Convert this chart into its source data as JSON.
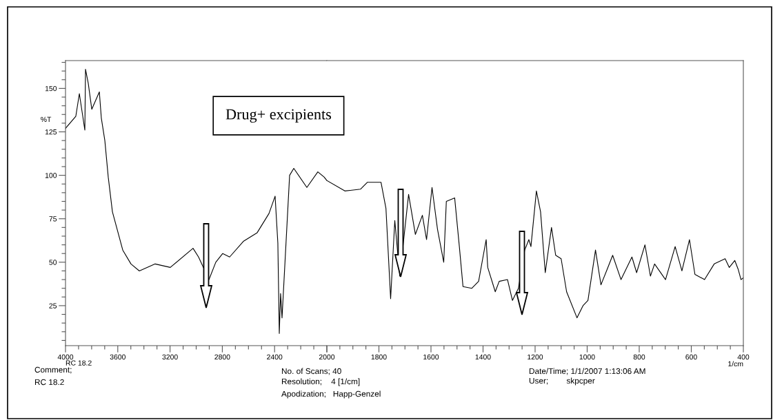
{
  "chart_data": [
    {
      "type": "line",
      "ylabel": "%T",
      "xlim": [
        4000,
        2000
      ],
      "xticks": [
        4000,
        3600,
        3200,
        2800,
        2400,
        {
          "value": 2000,
          "label": null
        }
      ],
      "ylim": [
        2,
        166
      ],
      "yticks": [
        25,
        50,
        75,
        100,
        125,
        150
      ],
      "marker": "none",
      "line_style": "solid",
      "annotations": [
        "RC 18.2",
        "Comment;",
        "RC 18.2",
        "No. of Scans; 40",
        "Resolution;    4 [1/cm]",
        "Apodization;   Happ-Genzel",
        "Date/Time; 1/1/2007 1:13:06 AM",
        "User;        skpcper",
        "Drug+ excipients"
      ],
      "series": [
        {
          "color": "#000000",
          "x": [
            4000,
            3921,
            3894,
            3852,
            3847,
            3826,
            3799,
            3741,
            3726,
            3699,
            3673,
            3641,
            3562,
            3499,
            3435,
            3314,
            3198,
            3024,
            2982,
            2902,
            2850,
            2797,
            2744,
            2639,
            2533,
            2443,
            2396,
            2375,
            2364,
            2354,
            2343,
            2285,
            2253,
            2153,
            2069,
            2021,
            2000
          ],
          "values": [
            127,
            134,
            147,
            126,
            161,
            153,
            138,
            148,
            133,
            120,
            99,
            79,
            57,
            49,
            45,
            49,
            47,
            58,
            53,
            40,
            50,
            55,
            53,
            62,
            67,
            78,
            88,
            61,
            9,
            32,
            18,
            100,
            104,
            93,
            102,
            99,
            97
          ]
        }
      ]
    },
    {
      "type": "line",
      "xlabel": "1/cm",
      "xlim": [
        2000,
        400
      ],
      "xticks": [
        2000,
        1800,
        1600,
        1400,
        1200,
        1000,
        800,
        600,
        400
      ],
      "ylim": [
        2,
        166
      ],
      "tick_labels": "x",
      "marker": "none",
      "line_style": "solid",
      "series": [
        {
          "color": "#000000",
          "x": [
            2000,
            1931,
            1871,
            1844,
            1792,
            1773,
            1755,
            1739,
            1720,
            1686,
            1660,
            1633,
            1617,
            1596,
            1575,
            1551,
            1541,
            1509,
            1491,
            1477,
            1443,
            1417,
            1388,
            1382,
            1353,
            1338,
            1306,
            1287,
            1264,
            1240,
            1224,
            1216,
            1195,
            1179,
            1161,
            1137,
            1121,
            1100,
            1079,
            1039,
            1016,
            997,
            968,
            947,
            923,
            902,
            870,
            828,
            810,
            778,
            757,
            741,
            699,
            662,
            636,
            607,
            586,
            549,
            512,
            470,
            454,
            433,
            420,
            409,
            400
          ],
          "values": [
            97,
            91,
            92,
            96,
            96,
            81,
            29,
            74,
            42,
            89,
            66,
            77,
            63,
            93,
            69,
            50,
            85,
            87,
            59,
            36,
            35,
            39,
            63,
            47,
            33,
            39,
            40,
            28,
            35,
            57,
            63,
            59,
            91,
            79,
            44,
            70,
            54,
            52,
            33,
            18,
            25,
            28,
            57,
            37,
            46,
            54,
            40,
            53,
            44,
            60,
            42,
            49,
            40,
            59,
            45,
            63,
            43,
            40,
            49,
            52,
            47,
            51,
            46,
            40,
            41
          ]
        }
      ]
    }
  ]
}
